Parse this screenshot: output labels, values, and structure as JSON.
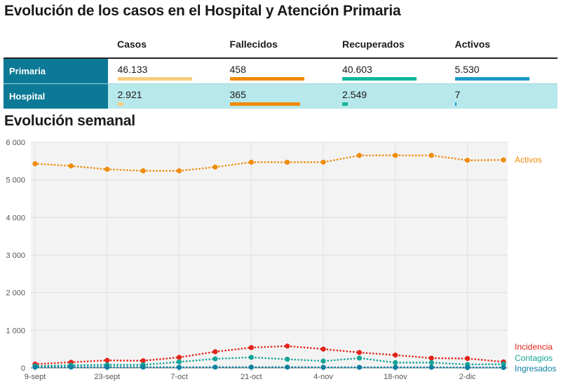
{
  "header": {
    "title": "Evolución de los casos en el Hospital y Atención Primaria",
    "subtitle": "Evolución semanal"
  },
  "summary_table": {
    "columns": [
      "Casos",
      "Fallecidos",
      "Recuperados",
      "Activos"
    ],
    "column_colors": [
      "#f8cd7f",
      "#f08c0a",
      "#12b89a",
      "#1a9bc8"
    ],
    "rows": [
      {
        "label": "Primaria",
        "values": [
          "46.133",
          "458",
          "40.603",
          "5.530"
        ],
        "bar_fractions": [
          0.85,
          0.85,
          0.85,
          0.85
        ]
      },
      {
        "label": "Hospital",
        "values": [
          "2.921",
          "365",
          "2.549",
          "7"
        ],
        "bar_fractions": [
          0.06,
          0.8,
          0.06,
          0.01
        ]
      }
    ]
  },
  "chart_data": {
    "type": "line",
    "x": [
      "9-sept",
      "16-sept",
      "23-sept",
      "30-sept",
      "7-oct",
      "14-oct",
      "21-oct",
      "28-oct",
      "4-nov",
      "11-nov",
      "18-nov",
      "25-nov",
      "2-dic",
      "9-dic"
    ],
    "x_tick_labels": [
      "9-sept",
      "23-sept",
      "7-oct",
      "21-oct",
      "4-nov",
      "18-nov",
      "2-dic"
    ],
    "ylim": [
      0,
      6000
    ],
    "y_ticks": [
      0,
      1000,
      2000,
      3000,
      4000,
      5000,
      6000
    ],
    "y_tick_labels": [
      "0",
      "1 000",
      "2 000",
      "3 000",
      "4 000",
      "5 000",
      "6 000"
    ],
    "grid": true,
    "series": [
      {
        "name": "Activos",
        "color": "#f08c0a",
        "values": [
          5430,
          5370,
          5280,
          5240,
          5240,
          5340,
          5470,
          5470,
          5470,
          5650,
          5650,
          5650,
          5520,
          5530
        ]
      },
      {
        "name": "Incidencia",
        "color": "#e2231a",
        "values": [
          100,
          150,
          200,
          190,
          280,
          430,
          540,
          580,
          500,
          410,
          340,
          260,
          250,
          160
        ]
      },
      {
        "name": "Contagios",
        "color": "#12a596",
        "values": [
          50,
          70,
          80,
          80,
          160,
          240,
          280,
          230,
          180,
          260,
          140,
          140,
          90,
          100
        ]
      },
      {
        "name": "Ingresados",
        "color": "#0c7fa2",
        "values": [
          20,
          20,
          20,
          20,
          15,
          20,
          20,
          20,
          15,
          15,
          15,
          15,
          10,
          10
        ]
      }
    ]
  }
}
